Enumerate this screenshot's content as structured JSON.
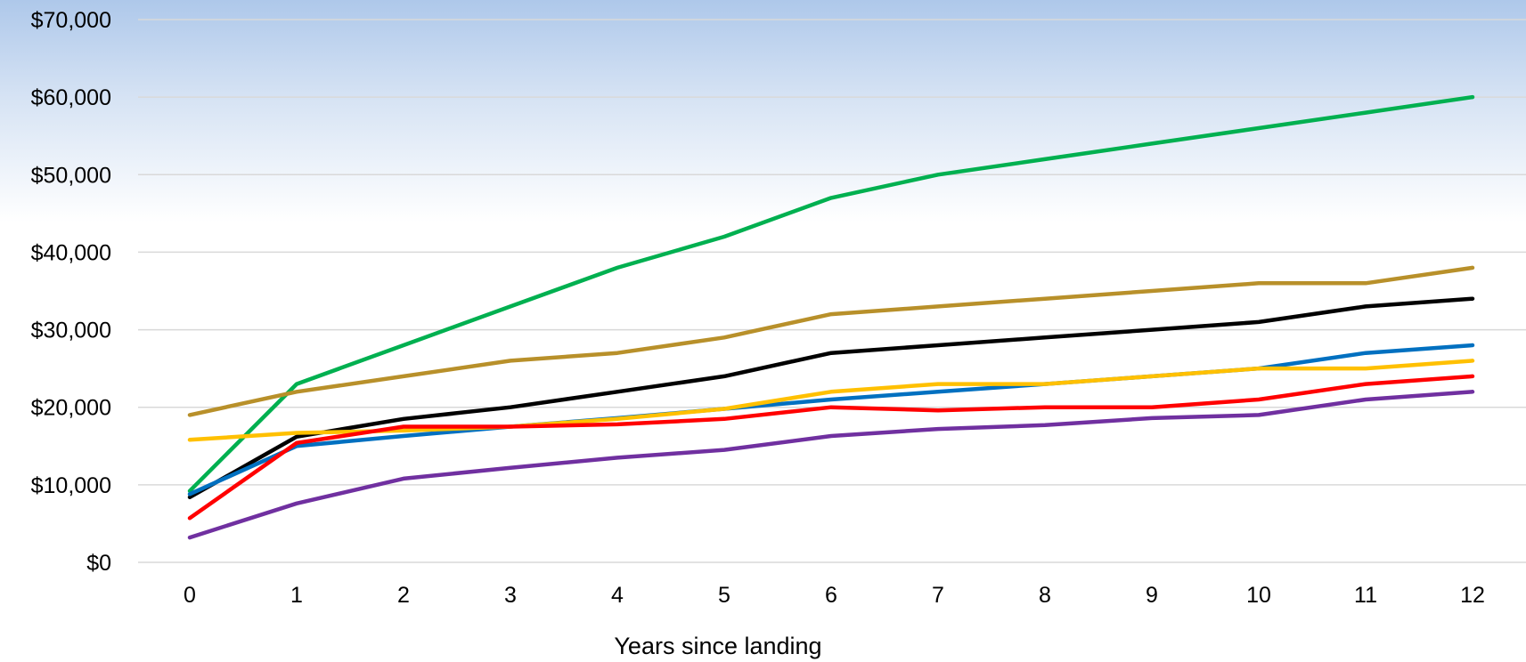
{
  "chart_data": {
    "type": "line",
    "title": "",
    "xlabel": "Years since landing",
    "ylabel": "",
    "x": [
      0,
      1,
      2,
      3,
      4,
      5,
      6,
      7,
      8,
      9,
      10,
      11,
      12
    ],
    "x_tick_labels": [
      "0",
      "1",
      "2",
      "3",
      "4",
      "5",
      "6",
      "7",
      "8",
      "9",
      "10",
      "11",
      "12"
    ],
    "ylim": [
      0,
      70000
    ],
    "y_ticks": [
      0,
      10000,
      20000,
      30000,
      40000,
      50000,
      60000,
      70000
    ],
    "y_tick_labels": [
      "$0",
      "$10,000",
      "$20,000",
      "$30,000",
      "$40,000",
      "$50,000",
      "$60,000",
      "$70,000"
    ],
    "grid": true,
    "legend": "none",
    "series": [
      {
        "color": "#00b050",
        "values": [
          9200,
          23000,
          28000,
          33000,
          38000,
          42000,
          47000,
          50000,
          52000,
          54000,
          56000,
          58000,
          60000
        ]
      },
      {
        "color": "#b8902a",
        "values": [
          19000,
          22000,
          24000,
          26000,
          27000,
          29000,
          32000,
          33000,
          34000,
          35000,
          36000,
          36000,
          38000
        ]
      },
      {
        "color": "#000000",
        "values": [
          8400,
          16200,
          18500,
          20000,
          22000,
          24000,
          27000,
          28000,
          29000,
          30000,
          31000,
          33000,
          34000
        ]
      },
      {
        "color": "#0070c0",
        "values": [
          8800,
          15000,
          16300,
          17500,
          18600,
          19800,
          21000,
          22000,
          23000,
          24000,
          25000,
          27000,
          28000
        ]
      },
      {
        "color": "#ffc000",
        "values": [
          15800,
          16700,
          17000,
          17500,
          18500,
          19800,
          22000,
          23000,
          23000,
          24000,
          25000,
          25000,
          26000
        ]
      },
      {
        "color": "#ff0000",
        "values": [
          5700,
          15400,
          17500,
          17500,
          17800,
          18500,
          20000,
          19600,
          20000,
          20000,
          21000,
          23000,
          24000
        ]
      },
      {
        "color": "#7030a0",
        "values": [
          3200,
          7600,
          10800,
          12200,
          13500,
          14500,
          16300,
          17200,
          17700,
          18600,
          19000,
          21000,
          22000
        ]
      }
    ]
  }
}
